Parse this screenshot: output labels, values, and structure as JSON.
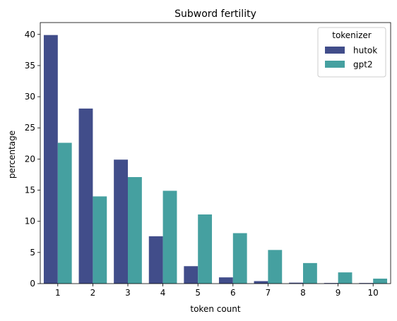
{
  "chart_data": {
    "type": "bar",
    "title": "Subword fertility",
    "xlabel": "token count",
    "ylabel": "percentage",
    "categories": [
      "1",
      "2",
      "3",
      "4",
      "5",
      "6",
      "7",
      "8",
      "9",
      "10"
    ],
    "series": [
      {
        "name": "hutok",
        "color": "#414d8a",
        "values": [
          39.9,
          28.1,
          19.9,
          7.6,
          2.8,
          1.0,
          0.4,
          0.15,
          0.1,
          0.1
        ]
      },
      {
        "name": "gpt2",
        "color": "#45a0a0",
        "values": [
          22.6,
          14.0,
          17.1,
          14.9,
          11.1,
          8.1,
          5.4,
          3.3,
          1.8,
          0.8
        ]
      }
    ],
    "ylim": [
      0,
      41.9
    ],
    "yticks": [
      "0",
      "5",
      "10",
      "15",
      "20",
      "25",
      "30",
      "35",
      "40"
    ],
    "legend": {
      "title": "tokenizer",
      "placement": "top-right"
    },
    "grid": false
  }
}
